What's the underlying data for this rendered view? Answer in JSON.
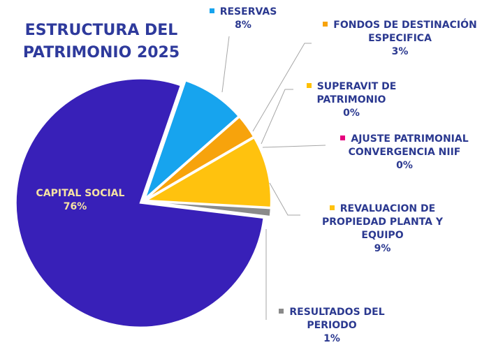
{
  "chart_data": {
    "type": "pie",
    "title": "ESTRUCTURA DEL PATRIMONIO 2025",
    "categories": [
      "RESERVAS",
      "FONDOS DE DESTINACIÓN ESPECIFICA",
      "SUPERAVIT DE PATRIMONIO",
      "AJUSTE PATRIMONIAL CONVERGENCIA NIIF",
      "REVALUACION DE PROPIEDAD PLANTA Y EQUIPO",
      "RESULTADOS DEL PERIODO",
      "CAPITAL SOCIAL"
    ],
    "values": [
      8,
      3,
      0,
      0,
      9,
      1,
      76
    ],
    "value_labels": [
      "8%",
      "3%",
      "0%",
      "0%",
      "9%",
      "1%",
      "76%"
    ],
    "colors": [
      "#17a4ee",
      "#f7a30c",
      "#ffc000",
      "#e6007e",
      "#ffc20e",
      "#8a8a8a",
      "#3820b8"
    ]
  }
}
